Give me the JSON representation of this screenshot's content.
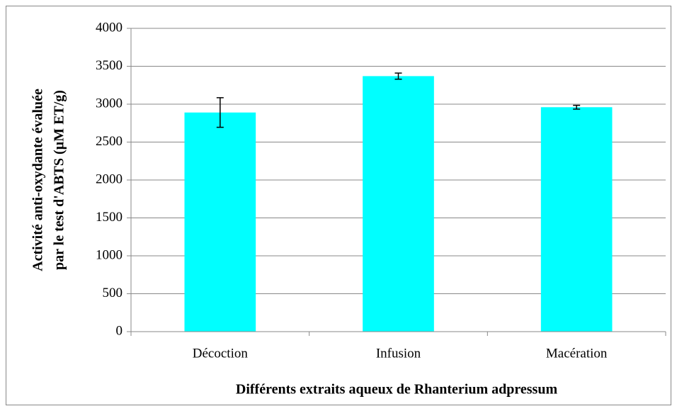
{
  "chart_data": {
    "type": "bar",
    "xlabel": "Différents extraits aqueux de Rhanterium adpressum",
    "ylabel": [
      "Activité anti-oxydante évaluée",
      "par le test d'ABTS (µM ET/g)"
    ],
    "categories": [
      "Décoction",
      "Infusion",
      "Macération"
    ],
    "values": [
      2890,
      3370,
      2960
    ],
    "errors": [
      195,
      40,
      25
    ],
    "color": "#00ffff",
    "ylim": [
      0,
      4000
    ],
    "yticks": [
      0,
      500,
      1000,
      1500,
      2000,
      2500,
      3000,
      3500,
      4000
    ],
    "grid": true
  }
}
